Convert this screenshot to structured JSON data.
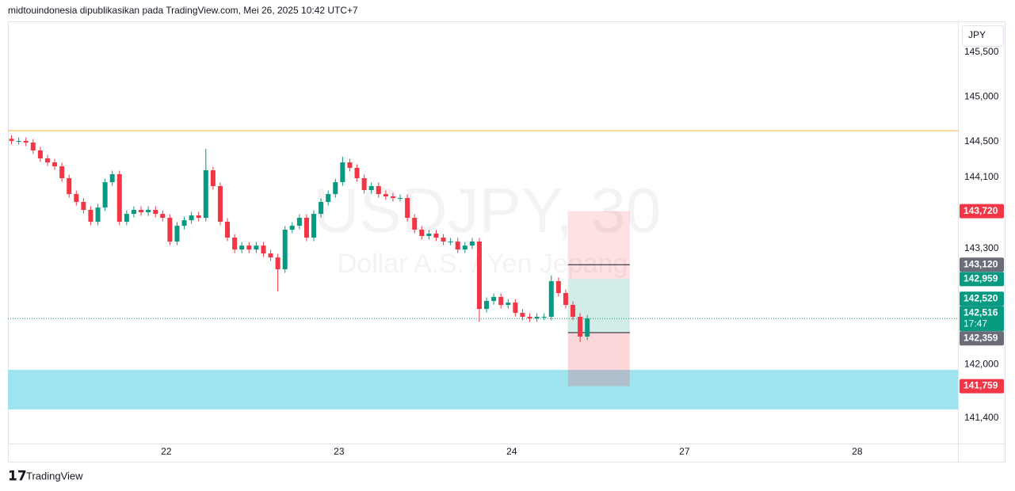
{
  "header": "midtouindonesia dipublikasikan pada TradingView.com, Mei 26, 2025 10:42 UTC+7",
  "branding": "TradingView",
  "chart_data": {
    "type": "candlestick",
    "title": "USDJPY, 30",
    "subtitle": "Dollar A.S. / Yen Jepang",
    "currency": "JPY",
    "up_color": "#089981",
    "down_color": "#f23645",
    "x": [
      0,
      1,
      2,
      3,
      4,
      5,
      6,
      7,
      8,
      9,
      10,
      11,
      12,
      13,
      14,
      15,
      16,
      17,
      18,
      19,
      20,
      21,
      22,
      23,
      24,
      25,
      26,
      27,
      28,
      29,
      30,
      31,
      32,
      33,
      34,
      35,
      36,
      37,
      38,
      39,
      40,
      41,
      42,
      43,
      44,
      45,
      46,
      47,
      48,
      49,
      50,
      51,
      52,
      53,
      54,
      55,
      56,
      57,
      58,
      59,
      60,
      61,
      62,
      63,
      64,
      65,
      66,
      67,
      68,
      69,
      70,
      71,
      72,
      73,
      74,
      75,
      76,
      77,
      78,
      79,
      80
    ],
    "open": [
      144530,
      144506,
      144506,
      144488,
      144400,
      144311,
      144266,
      144222,
      144089,
      143911,
      143823,
      143734,
      143601,
      143760,
      144044,
      144133,
      143601,
      143689,
      143734,
      143707,
      143734,
      143689,
      143645,
      143379,
      143556,
      143618,
      143672,
      143645,
      144178,
      144000,
      143601,
      143423,
      143290,
      143334,
      143290,
      143334,
      143246,
      143201,
      143068,
      143512,
      143556,
      143645,
      143423,
      143689,
      143823,
      143911,
      144044,
      144266,
      144204,
      144089,
      143956,
      144000,
      143911,
      143885,
      143867,
      143867,
      143645,
      143512,
      143441,
      143468,
      143423,
      143379,
      143379,
      143290,
      143334,
      143379,
      142624,
      142713,
      142758,
      142669,
      142695,
      142580,
      142536,
      142518,
      142536,
      142536,
      142935,
      142802,
      142669,
      142536,
      142314
    ],
    "high": [
      144570,
      144546,
      144546,
      144528,
      144440,
      144351,
      144306,
      144262,
      144129,
      143951,
      143863,
      143774,
      143800,
      144084,
      144173,
      144173,
      143729,
      143774,
      143774,
      143774,
      143774,
      143729,
      143685,
      143596,
      143658,
      143712,
      143712,
      144417,
      144218,
      144040,
      143641,
      143463,
      143374,
      143374,
      143374,
      143374,
      143286,
      143241,
      143552,
      143596,
      143685,
      143685,
      143729,
      143863,
      143951,
      144084,
      144330,
      144306,
      144244,
      144129,
      144040,
      144040,
      143951,
      143925,
      143907,
      143907,
      143685,
      143552,
      143508,
      143508,
      143463,
      143419,
      143419,
      143374,
      143419,
      143419,
      142753,
      142798,
      142798,
      142735,
      142735,
      142620,
      142576,
      142576,
      142576,
      143000,
      142975,
      142842,
      142709,
      142576,
      142556
    ],
    "low": [
      144466,
      144466,
      144448,
      144360,
      144271,
      144226,
      144182,
      144049,
      143871,
      143783,
      143694,
      143561,
      143561,
      143720,
      144004,
      143561,
      143561,
      143649,
      143667,
      143667,
      143649,
      143605,
      143339,
      143339,
      143516,
      143578,
      143605,
      143605,
      143960,
      143561,
      143383,
      143250,
      143250,
      143250,
      143250,
      143206,
      143161,
      142820,
      143028,
      143472,
      143516,
      143383,
      143383,
      143649,
      143783,
      143871,
      144004,
      144164,
      144049,
      143916,
      143916,
      143871,
      143845,
      143827,
      143827,
      143605,
      143472,
      143401,
      143401,
      143383,
      143339,
      143339,
      143250,
      143250,
      143294,
      142480,
      142584,
      142673,
      142629,
      142629,
      142540,
      142496,
      142478,
      142478,
      142496,
      142496,
      142762,
      142629,
      142496,
      142250,
      142274
    ],
    "close": [
      144506,
      144506,
      144488,
      144400,
      144311,
      144266,
      144222,
      144089,
      143911,
      143823,
      143734,
      143601,
      143760,
      144044,
      144133,
      143601,
      143689,
      143734,
      143707,
      143734,
      143689,
      143645,
      143379,
      143556,
      143618,
      143672,
      143645,
      144178,
      144000,
      143601,
      143423,
      143290,
      143334,
      143290,
      143334,
      143246,
      143201,
      143068,
      143512,
      143556,
      143645,
      143423,
      143689,
      143823,
      143911,
      144044,
      144266,
      144204,
      144089,
      143956,
      144000,
      143911,
      143885,
      143867,
      143867,
      143645,
      143512,
      143441,
      143468,
      143423,
      143379,
      143379,
      143290,
      143334,
      143379,
      142624,
      142713,
      142758,
      142669,
      142695,
      142580,
      142536,
      142518,
      142536,
      142536,
      142935,
      142802,
      142669,
      142536,
      142314,
      142516
    ],
    "xlim": [
      0,
      132
    ],
    "xticks": [
      22,
      {
        "value": 46,
        "label": "23"
      },
      {
        "value": 70,
        "label": "24"
      },
      {
        "value": 94,
        "label": "27"
      },
      {
        "value": 118,
        "label": "28"
      }
    ],
    "ylim": [
      141134,
      145846
    ],
    "yticks": [
      {
        "value": 145500,
        "label": "145,500"
      },
      {
        "value": 145000,
        "label": "145,000"
      },
      {
        "value": 144500,
        "label": "144,500"
      },
      {
        "value": 144100,
        "label": "144,100"
      },
      {
        "value": 143300,
        "label": "143,300"
      },
      {
        "value": 142000,
        "label": "142,000"
      },
      {
        "value": 141400,
        "label": "141,400"
      }
    ],
    "horizontal_line": {
      "value": 144621,
      "color": "#f5b041"
    },
    "zone": {
      "from": 141941,
      "to": 141498,
      "color": "#9fe3ee"
    },
    "position": {
      "x_range": [
        77.8,
        86.4
      ],
      "zones": [
        {
          "from": 143720,
          "to": 142959,
          "color": "rgba(242,54,69,0.15)"
        },
        {
          "from": 142959,
          "to": 142359,
          "color": "rgba(8,153,129,0.18)"
        },
        {
          "from": 142359,
          "to": 141759,
          "color": "rgba(242,54,69,0.2)"
        }
      ],
      "lines": [
        143120,
        142359
      ]
    },
    "current_price": {
      "value": 142516,
      "label": "142,516",
      "countdown": "17:47",
      "color": "#089981"
    },
    "price_labels": [
      {
        "value": 143720,
        "label": "143,720",
        "color": "#f23645"
      },
      {
        "value": 143120,
        "label": "143,120",
        "color": "#6a6d78"
      },
      {
        "value": 142959,
        "label": "142,959",
        "color": "#089981"
      },
      {
        "value": 142520,
        "label": "142,520",
        "color": "#089981"
      },
      {
        "value": 142359,
        "label": "142,359",
        "color": "#6a6d78"
      },
      {
        "value": 141759,
        "label": "141,759",
        "color": "#f23645"
      }
    ]
  }
}
